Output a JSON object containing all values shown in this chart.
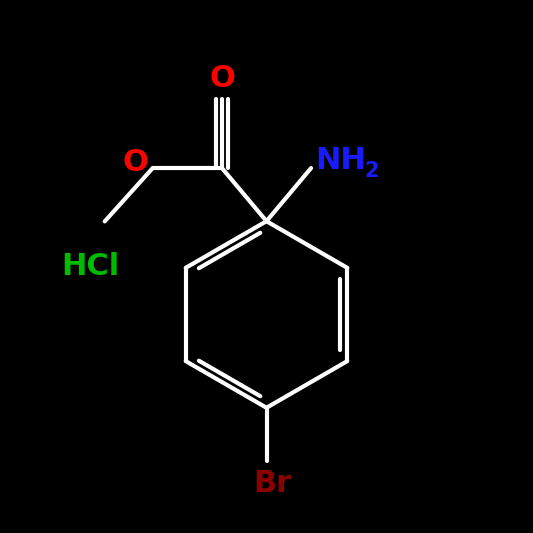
{
  "background_color": "#000000",
  "bond_color": "#ffffff",
  "bond_width": 3.0,
  "colors": {
    "O": "#ff0000",
    "N": "#1a1aff",
    "Br": "#8b0000",
    "HCl": "#00bb00",
    "C": "#ffffff"
  },
  "font_size_large": 22,
  "font_size_sub": 15,
  "font_size_hcl": 22
}
